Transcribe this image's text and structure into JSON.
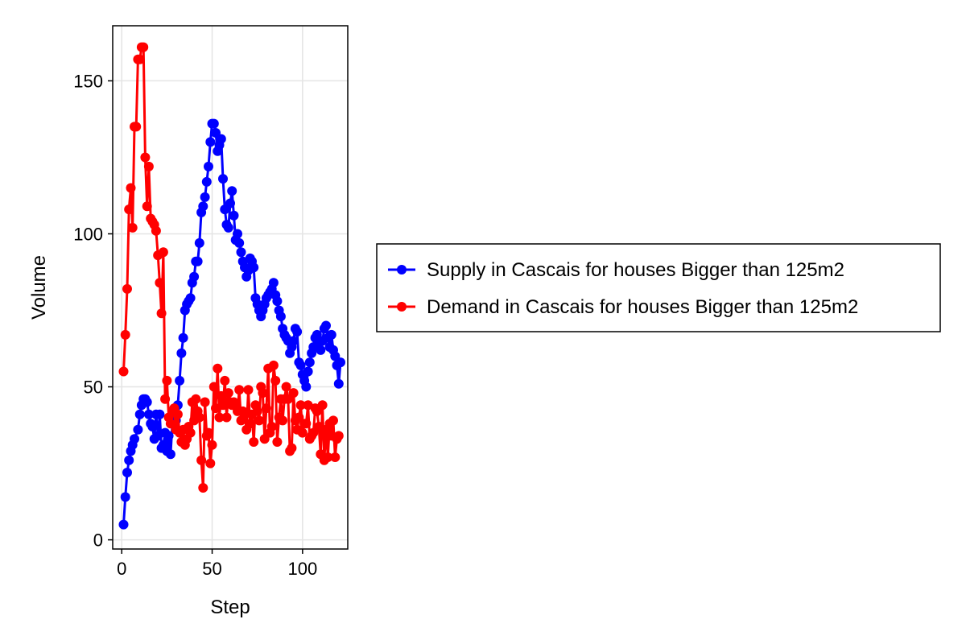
{
  "chart_data": {
    "type": "line",
    "xlabel": "Step",
    "ylabel": "Volume",
    "xlim": [
      -5,
      125
    ],
    "ylim": [
      -3,
      168
    ],
    "xticks": [
      0,
      50,
      100
    ],
    "yticks": [
      0,
      50,
      100,
      150
    ],
    "grid": true,
    "legend_position": "right",
    "series": [
      {
        "name": "Supply in Cascais for houses Bigger than 125m2",
        "color": "#0000ff",
        "x": [
          1,
          2,
          3,
          4,
          5,
          6,
          7,
          8,
          9,
          10,
          11,
          12,
          13,
          14,
          15,
          16,
          17,
          18,
          19,
          20,
          21,
          22,
          23,
          24,
          25,
          26,
          27,
          28,
          29,
          30,
          31,
          32,
          33,
          34,
          35,
          36,
          37,
          38,
          39,
          40,
          41,
          42,
          43,
          44,
          45,
          46,
          47,
          48,
          49,
          50,
          51,
          52,
          53,
          54,
          55,
          56,
          57,
          58,
          59,
          60,
          61,
          62,
          63,
          64,
          65,
          66,
          67,
          68,
          69,
          70,
          71,
          72,
          73,
          74,
          75,
          76,
          77,
          78,
          79,
          80,
          81,
          82,
          83,
          84,
          85,
          86,
          87,
          88,
          89,
          90,
          91,
          92,
          93,
          94,
          95,
          96,
          97,
          98,
          99,
          100,
          101,
          102,
          103,
          104,
          105,
          106,
          107,
          108,
          109,
          110,
          111,
          112,
          113,
          114,
          115,
          116,
          117,
          118,
          119,
          120
        ],
        "values": [
          5,
          14,
          22,
          26,
          29,
          31,
          33,
          36,
          41,
          44,
          46,
          46,
          45,
          41,
          38,
          37,
          33,
          41,
          34,
          41,
          30,
          31,
          35,
          29,
          34,
          28,
          38,
          41,
          39,
          44,
          52,
          61,
          66,
          75,
          77,
          78,
          79,
          84,
          86,
          91,
          91,
          97,
          107,
          109,
          112,
          117,
          122,
          130,
          136,
          136,
          133,
          127,
          129,
          131,
          118,
          108,
          103,
          102,
          110,
          114,
          106,
          98,
          100,
          97,
          94,
          91,
          89,
          86,
          88,
          92,
          91,
          89,
          79,
          77,
          75,
          73,
          75,
          77,
          79,
          80,
          81,
          82,
          84,
          80,
          78,
          75,
          73,
          69,
          67,
          66,
          65,
          61,
          63,
          65,
          69,
          68,
          58,
          57,
          54,
          52,
          50,
          55,
          58,
          61,
          63,
          66,
          67,
          64,
          62,
          65,
          69,
          70,
          66,
          63,
          67,
          62,
          60,
          57,
          51,
          58
        ],
        "x_actual": [
          1,
          2,
          3,
          4,
          5,
          6,
          7,
          9,
          10,
          11,
          12,
          13,
          14,
          15,
          16,
          17,
          18,
          19,
          20,
          21,
          22,
          23,
          24,
          25,
          26,
          27,
          28,
          29,
          30,
          31,
          32,
          33,
          34,
          35,
          36,
          37,
          38,
          39,
          40,
          41,
          42,
          43,
          44,
          45,
          46,
          47,
          48,
          49,
          50,
          51,
          52,
          53,
          54,
          55,
          56,
          57,
          58,
          59,
          60,
          61,
          62,
          63,
          64,
          65,
          66,
          67,
          68,
          69,
          70,
          71,
          72,
          73,
          74,
          75,
          76,
          77,
          78,
          79,
          80,
          81,
          82,
          83,
          84,
          85,
          86,
          87,
          88,
          89,
          90,
          91,
          92,
          93,
          94,
          95,
          96,
          97,
          98,
          99,
          100,
          101,
          102,
          103,
          104,
          105,
          106,
          107,
          108,
          109,
          110,
          111,
          112,
          113,
          114,
          115,
          116,
          117,
          118,
          119,
          120,
          121
        ]
      },
      {
        "name": "Demand in Cascais for houses Bigger than 125m2",
        "color": "#ff0000",
        "x": [
          1,
          2,
          3,
          4,
          5,
          6,
          7,
          8,
          9,
          10,
          11,
          12,
          13,
          14,
          15,
          16,
          17,
          18,
          19,
          20,
          21,
          22,
          23,
          24,
          25,
          26,
          27,
          28,
          29,
          30,
          31,
          32,
          33,
          34,
          35,
          36,
          37,
          38,
          39,
          40,
          41,
          42,
          43,
          44,
          45,
          46,
          47,
          48,
          49,
          50,
          51,
          52,
          53,
          54,
          55,
          56,
          57,
          58,
          59,
          60,
          61,
          62,
          63,
          64,
          65,
          66,
          67,
          68,
          69,
          70,
          71,
          72,
          73,
          74,
          75,
          76,
          77,
          78,
          79,
          80,
          81,
          82,
          83,
          84,
          85,
          86,
          87,
          88,
          89,
          90,
          91,
          92,
          93,
          94,
          95,
          96,
          97,
          98,
          99,
          100,
          101,
          102,
          103,
          104,
          105,
          106,
          107,
          108,
          109,
          110,
          111,
          112,
          113,
          114,
          115,
          116,
          117,
          118,
          119,
          120
        ],
        "values": [
          55,
          67,
          82,
          108,
          115,
          102,
          135,
          135,
          157,
          157,
          161,
          161,
          125,
          109,
          122,
          105,
          104,
          103,
          101,
          93,
          84,
          74,
          94,
          46,
          52,
          40,
          38,
          42,
          43,
          36,
          41,
          35,
          32,
          36,
          31,
          33,
          37,
          35,
          45,
          39,
          46,
          42,
          40,
          26,
          17,
          45,
          34,
          35,
          25,
          31,
          50,
          43,
          56,
          40,
          47,
          44,
          52,
          40,
          48,
          45,
          44,
          45,
          44,
          42,
          49,
          39,
          42,
          41,
          36,
          49,
          38,
          41,
          32,
          44,
          42,
          39,
          50,
          48,
          33,
          43,
          56,
          35,
          37,
          57,
          52,
          32,
          40,
          46,
          39,
          46,
          50,
          46,
          29,
          30,
          48,
          39,
          36,
          40,
          44,
          35,
          38,
          38,
          44,
          33,
          34,
          35,
          43,
          42,
          37,
          28,
          44,
          26,
          36,
          27,
          38,
          34,
          39,
          27,
          33,
          34
        ],
        "x_actual": [
          1,
          2,
          3,
          4,
          5,
          6,
          7,
          8,
          9,
          10,
          11,
          12,
          13,
          14,
          15,
          16,
          17,
          18,
          19,
          20,
          21,
          22,
          23,
          24,
          25,
          26,
          27,
          28,
          29,
          30,
          31,
          32,
          33,
          34,
          35,
          36,
          37,
          38,
          39,
          40,
          41,
          42,
          43,
          44,
          45,
          46,
          47,
          48,
          49,
          50,
          51,
          52,
          53,
          54,
          55,
          56,
          57,
          58,
          59,
          60,
          61,
          62,
          63,
          64,
          65,
          66,
          67,
          68,
          69,
          70,
          71,
          72,
          73,
          74,
          75,
          76,
          77,
          78,
          79,
          80,
          81,
          82,
          83,
          84,
          85,
          86,
          87,
          88,
          89,
          90,
          91,
          92,
          93,
          94,
          95,
          96,
          97,
          98,
          99,
          100,
          101,
          102,
          103,
          104,
          105,
          106,
          107,
          108,
          109,
          110,
          111,
          112,
          113,
          114,
          115,
          116,
          117,
          118,
          119,
          120
        ]
      }
    ]
  }
}
